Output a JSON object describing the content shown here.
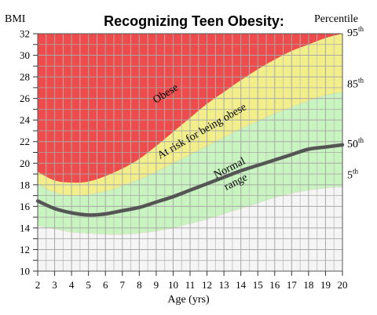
{
  "chart_data": {
    "type": "area",
    "title": "Recognizing Teen Obesity:",
    "ylabel": "BMI",
    "xlabel": "Age (yrs)",
    "right_axis_label": "Percentile",
    "xlim": [
      2,
      20
    ],
    "ylim": [
      10,
      32
    ],
    "x_ticks": [
      2,
      3,
      4,
      5,
      6,
      7,
      8,
      9,
      10,
      11,
      12,
      13,
      14,
      15,
      16,
      17,
      18,
      19,
      20
    ],
    "y_ticks": [
      10,
      12,
      14,
      16,
      18,
      20,
      22,
      24,
      26,
      28,
      30,
      32
    ],
    "grid": true,
    "x": [
      2,
      3,
      4,
      5,
      6,
      7,
      8,
      9,
      10,
      11,
      12,
      13,
      14,
      15,
      16,
      17,
      18,
      19,
      20
    ],
    "series": [
      {
        "name": "95th",
        "display": "95",
        "sup": "th",
        "color": "#f2ee8a",
        "values": [
          19.2,
          18.4,
          18.2,
          18.3,
          18.8,
          19.5,
          20.4,
          21.6,
          22.9,
          24.2,
          25.5,
          26.6,
          27.7,
          28.7,
          29.6,
          30.4,
          31.0,
          31.6,
          32.0
        ]
      },
      {
        "name": "85th",
        "display": "85",
        "sup": "th",
        "color": "#c8f4c0",
        "values": [
          18.1,
          17.3,
          17.0,
          17.1,
          17.4,
          17.9,
          18.5,
          19.2,
          20.0,
          20.8,
          21.6,
          22.4,
          23.2,
          23.9,
          24.6,
          25.2,
          25.8,
          26.3,
          26.6
        ]
      },
      {
        "name": "50th",
        "display": "50",
        "sup": "th",
        "color": "#555555",
        "values": [
          16.5,
          15.8,
          15.4,
          15.2,
          15.3,
          15.6,
          15.9,
          16.4,
          16.9,
          17.5,
          18.1,
          18.7,
          19.3,
          19.8,
          20.3,
          20.8,
          21.3,
          21.5,
          21.7
        ]
      },
      {
        "name": "5th",
        "display": "5",
        "sup": "th",
        "color": "#f5f5f5",
        "values": [
          14.2,
          13.9,
          13.6,
          13.5,
          13.4,
          13.4,
          13.5,
          13.7,
          14.0,
          14.4,
          14.8,
          15.3,
          15.8,
          16.3,
          16.8,
          17.2,
          17.5,
          17.7,
          17.8
        ]
      }
    ],
    "zones": {
      "obese": {
        "label": "Obese",
        "color": "#ee4c4c"
      },
      "at_risk": {
        "label": "At risk for being obese",
        "color": "#f2ee8a"
      },
      "normal": {
        "label_line1": "Normal",
        "label_line2": "range",
        "color": "#c8f4c0"
      },
      "below": {
        "color": "#f5f5f5"
      }
    }
  }
}
